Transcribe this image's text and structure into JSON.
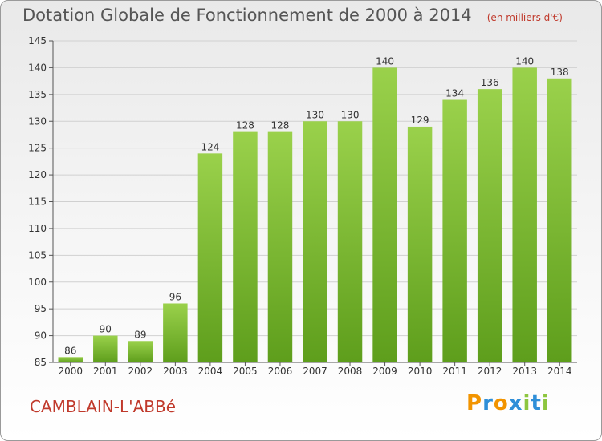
{
  "chart_data": {
    "type": "bar",
    "title": "Dotation Globale de Fonctionnement de 2000 à 2014",
    "subtitle": "(en milliers d'€)",
    "categories": [
      "2000",
      "2001",
      "2002",
      "2003",
      "2004",
      "2005",
      "2006",
      "2007",
      "2008",
      "2009",
      "2010",
      "2011",
      "2012",
      "2013",
      "2014"
    ],
    "values": [
      86,
      90,
      89,
      96,
      124,
      128,
      128,
      130,
      130,
      140,
      129,
      134,
      136,
      140,
      138
    ],
    "ylim": [
      85,
      145
    ],
    "yticks": [
      85,
      90,
      95,
      100,
      105,
      110,
      115,
      120,
      125,
      130,
      135,
      140,
      145
    ],
    "grid": true,
    "bar_color": "#7cc034"
  },
  "commune": "CAMBLAIN-L'ABBé",
  "logo": {
    "p": "P",
    "r": "r",
    "o": "o",
    "x": "x",
    "i": "i",
    "t": "t",
    "i2": "i"
  }
}
